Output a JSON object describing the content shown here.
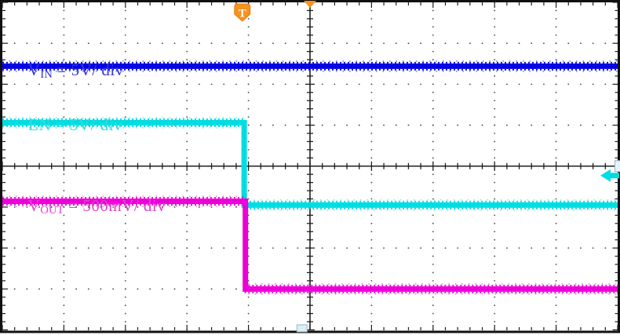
{
  "chart_data": {
    "type": "line",
    "title": "",
    "x_axis": {
      "divisions": 10,
      "minor_per_division": 5,
      "label": ""
    },
    "y_axis": {
      "divisions": 8,
      "minor_per_division": 5,
      "label": ""
    },
    "grid": {
      "style": "dotted major divisions, solid center axes with minor ticks",
      "dot_color": "#4a4a4a",
      "axis_color": "#1f1f1f",
      "border_color": "#101010"
    },
    "trigger": {
      "x_div": 3.9,
      "color": "#f6921e"
    },
    "series": [
      {
        "name": "VIN",
        "label": {
          "pre": "V",
          "sub": "IN",
          "post": " = 5V/ div"
        },
        "scale_per_div": "5V",
        "color": "#0505e2",
        "label_color": "#3434d6",
        "points_div": [
          [
            0,
            1.56
          ],
          [
            10,
            1.56
          ]
        ]
      },
      {
        "name": "EN",
        "label": {
          "pre": "EN",
          "sub": "",
          "post": " = 5V/ div"
        },
        "scale_per_div": "5V",
        "color": "#00dde2",
        "label_color": "#35dcdc",
        "points_div": [
          [
            0,
            2.94
          ],
          [
            3.93,
            2.94
          ],
          [
            3.93,
            4.95
          ],
          [
            10,
            4.95
          ]
        ]
      },
      {
        "name": "VOUT",
        "label": {
          "pre": "V",
          "sub": "OUT",
          "post": " = 500mV/ div"
        },
        "scale_per_div": "500mV",
        "color": "#ec00d8",
        "label_color": "#e340d0",
        "points_div": [
          [
            0,
            4.86
          ],
          [
            3.95,
            4.86
          ],
          [
            3.95,
            7.0
          ],
          [
            10,
            7.0
          ]
        ]
      }
    ],
    "markers": {
      "trigger_badge_label": "T",
      "trigger_time_arrow_x_div": 5.0,
      "ch2_arrow_y_div": 4.23,
      "bottom_marker_x_div": 4.87
    }
  }
}
